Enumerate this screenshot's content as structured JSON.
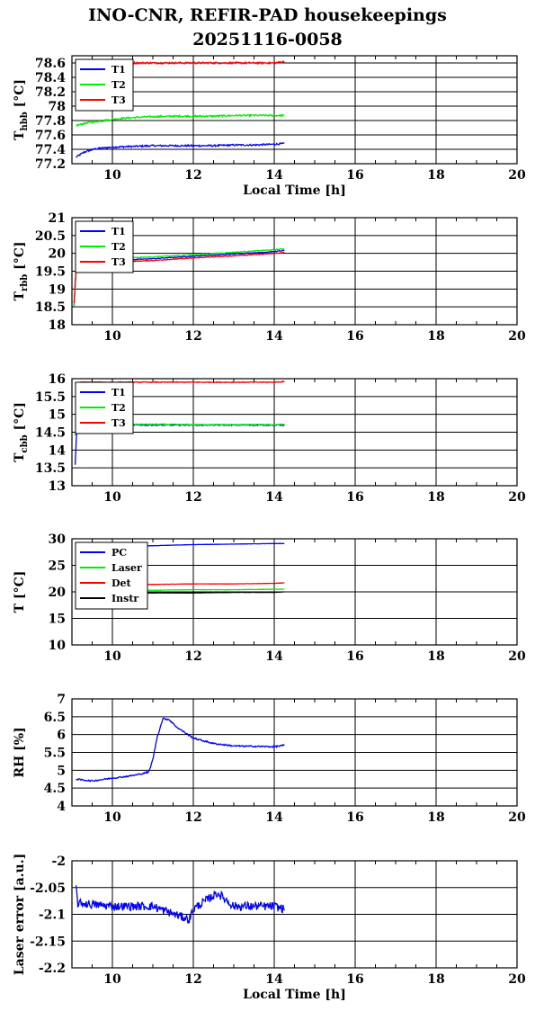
{
  "title_line1": "INO-CNR, REFIR-PAD housekeepings",
  "title_line2": "20251116-0058",
  "chart_data": [
    {
      "type": "line",
      "ylabel": "T",
      "ylabel_sub": "hbb",
      "ylabel_unit": "[°C]",
      "xlabel": "Local Time [h]",
      "xlim": [
        9,
        20
      ],
      "ylim": [
        77.2,
        78.7
      ],
      "yticks": [
        77.2,
        77.4,
        77.6,
        77.8,
        78,
        78.2,
        78.4,
        78.6
      ],
      "ytick_labels": [
        "77.2",
        "77.4",
        "77.6",
        "77.8",
        "78",
        "78.2",
        "78.4",
        "78.6"
      ],
      "xticks": [
        10,
        12,
        14,
        16,
        18,
        20
      ],
      "xtick_labels": [
        "10",
        "12",
        "14",
        "16",
        "18",
        "20"
      ],
      "grid": true,
      "legend": "top-left",
      "series": [
        {
          "name": "T1",
          "color": "#0000ff",
          "x": [
            9.1,
            9.3,
            9.6,
            10,
            10.5,
            11,
            11.5,
            12,
            12.5,
            13,
            13.5,
            14,
            14.25
          ],
          "y": [
            77.29,
            77.36,
            77.41,
            77.43,
            77.44,
            77.45,
            77.45,
            77.45,
            77.45,
            77.46,
            77.46,
            77.47,
            77.48
          ],
          "noise": 0.012
        },
        {
          "name": "T2",
          "color": "#00ee00",
          "x": [
            9.1,
            9.4,
            9.8,
            10.2,
            10.8,
            11.5,
            12,
            12.5,
            13,
            13.5,
            14,
            14.25
          ],
          "y": [
            77.73,
            77.77,
            77.8,
            77.83,
            77.85,
            77.86,
            77.86,
            77.86,
            77.87,
            77.87,
            77.87,
            77.87
          ],
          "noise": 0.012
        },
        {
          "name": "T3",
          "color": "#ff0000",
          "x": [
            9.1,
            9.6,
            10,
            11,
            12,
            13,
            14,
            14.25
          ],
          "y": [
            78.6,
            78.6,
            78.6,
            78.6,
            78.6,
            78.6,
            78.6,
            78.62
          ],
          "noise": 0.012
        }
      ]
    },
    {
      "type": "line",
      "ylabel": "T",
      "ylabel_sub": "rbb",
      "ylabel_unit": "[°C]",
      "xlabel": "",
      "xlim": [
        9,
        20
      ],
      "ylim": [
        18,
        21
      ],
      "yticks": [
        18,
        18.5,
        19,
        19.5,
        20,
        20.5,
        21
      ],
      "ytick_labels": [
        "18",
        "18.5",
        "19",
        "19.5",
        "20",
        "20.5",
        "21"
      ],
      "xticks": [
        10,
        12,
        14,
        16,
        18,
        20
      ],
      "xtick_labels": [
        "10",
        "12",
        "14",
        "16",
        "18",
        "20"
      ],
      "grid": true,
      "legend": "top-left",
      "series": [
        {
          "name": "T1",
          "color": "#0000ff",
          "x": [
            9.05,
            9.1,
            9.15,
            9.3,
            10,
            11,
            12,
            13,
            14,
            14.25
          ],
          "y": [
            18.5,
            19.5,
            19.75,
            19.8,
            19.8,
            19.85,
            19.92,
            19.98,
            20.05,
            20.08
          ],
          "noise": 0.01
        },
        {
          "name": "T2",
          "color": "#00ee00",
          "x": [
            9.05,
            9.1,
            9.15,
            9.3,
            10,
            11,
            12,
            13,
            14,
            14.25
          ],
          "y": [
            18.5,
            19.5,
            19.78,
            19.82,
            19.85,
            19.9,
            19.96,
            20.03,
            20.1,
            20.13
          ],
          "noise": 0.012
        },
        {
          "name": "T3",
          "color": "#ff0000",
          "x": [
            9.05,
            9.1,
            9.15,
            9.3,
            10,
            11,
            12,
            13,
            14,
            14.25
          ],
          "y": [
            18.6,
            19.5,
            19.7,
            19.72,
            19.75,
            19.8,
            19.87,
            19.93,
            20,
            20.02
          ],
          "noise": 0.01
        }
      ]
    },
    {
      "type": "line",
      "ylabel": "T",
      "ylabel_sub": "cbb",
      "ylabel_unit": "[°C]",
      "xlabel": "",
      "xlim": [
        9,
        20
      ],
      "ylim": [
        13,
        16
      ],
      "yticks": [
        13,
        13.5,
        14,
        14.5,
        15,
        15.5,
        16
      ],
      "ytick_labels": [
        "13",
        "13.5",
        "14",
        "14.5",
        "15",
        "15.5",
        "16"
      ],
      "xticks": [
        10,
        12,
        14,
        16,
        18,
        20
      ],
      "xtick_labels": [
        "10",
        "12",
        "14",
        "16",
        "18",
        "20"
      ],
      "grid": true,
      "legend": "top-left",
      "series": [
        {
          "name": "T1",
          "color": "#0000ff",
          "x": [
            9.08,
            9.12,
            9.2,
            9.5,
            10,
            11,
            12,
            13,
            14,
            14.25
          ],
          "y": [
            13.6,
            14.6,
            14.68,
            14.7,
            14.7,
            14.7,
            14.7,
            14.7,
            14.7,
            14.7
          ],
          "noise": 0.015
        },
        {
          "name": "T2",
          "color": "#00ee00",
          "x": [
            9.08,
            9.12,
            9.2,
            9.5,
            10,
            11,
            12,
            13,
            14,
            14.25
          ],
          "y": [
            14.4,
            14.65,
            14.7,
            14.72,
            14.72,
            14.72,
            14.71,
            14.71,
            14.71,
            14.72
          ],
          "noise": 0.015
        },
        {
          "name": "T3",
          "color": "#ff0000",
          "x": [
            9.08,
            9.1,
            9.2,
            10,
            11,
            12,
            13,
            14,
            14.25
          ],
          "y": [
            15.85,
            15.88,
            15.9,
            15.9,
            15.9,
            15.9,
            15.9,
            15.9,
            15.92
          ],
          "noise": 0.012
        }
      ]
    },
    {
      "type": "line",
      "ylabel": "T [°C]",
      "xlabel": "",
      "xlim": [
        9,
        20
      ],
      "ylim": [
        10,
        30
      ],
      "yticks": [
        10,
        15,
        20,
        25,
        30
      ],
      "ytick_labels": [
        "10",
        "15",
        "20",
        "25",
        "30"
      ],
      "xticks": [
        10,
        12,
        14,
        16,
        18,
        20
      ],
      "xtick_labels": [
        "10",
        "12",
        "14",
        "16",
        "18",
        "20"
      ],
      "grid": true,
      "legend": "top-left",
      "series": [
        {
          "name": "PC",
          "color": "#0000ff",
          "x": [
            9.1,
            10,
            11,
            12,
            13,
            14,
            14.25
          ],
          "y": [
            28.3,
            28.5,
            28.7,
            28.9,
            29.0,
            29.1,
            29.1
          ],
          "noise": 0.02
        },
        {
          "name": "Laser",
          "color": "#00ee00",
          "x": [
            9.1,
            10,
            11,
            12,
            13,
            14,
            14.25
          ],
          "y": [
            20.3,
            20.3,
            20.3,
            20.4,
            20.4,
            20.5,
            20.5
          ],
          "noise": 0.03
        },
        {
          "name": "Det",
          "color": "#ff0000",
          "x": [
            9.1,
            10,
            11,
            12,
            13,
            14,
            14.25
          ],
          "y": [
            21.4,
            21.4,
            21.4,
            21.5,
            21.5,
            21.6,
            21.7
          ],
          "noise": 0.02
        },
        {
          "name": "Instr",
          "color": "#000000",
          "x": [
            9.1,
            10,
            11,
            12,
            13,
            14,
            14.25
          ],
          "y": [
            19.7,
            19.7,
            19.8,
            19.8,
            19.9,
            19.9,
            20.0
          ],
          "noise": 0.02
        }
      ]
    },
    {
      "type": "line",
      "ylabel": "RH [%]",
      "xlabel": "",
      "xlim": [
        9,
        20
      ],
      "ylim": [
        4,
        7
      ],
      "yticks": [
        4,
        4.5,
        5,
        5.5,
        6,
        6.5,
        7
      ],
      "ytick_labels": [
        "4",
        "4.5",
        "5",
        "5.5",
        "6",
        "6.5",
        "7"
      ],
      "xticks": [
        10,
        12,
        14,
        16,
        18,
        20
      ],
      "xtick_labels": [
        "10",
        "12",
        "14",
        "16",
        "18",
        "20"
      ],
      "grid": true,
      "legend": "none",
      "series": [
        {
          "color": "#0000ff",
          "x": [
            9.1,
            9.5,
            10,
            10.3,
            10.6,
            10.9,
            11.0,
            11.1,
            11.25,
            11.4,
            11.6,
            12,
            12.5,
            13,
            13.5,
            14,
            14.25
          ],
          "y": [
            4.75,
            4.7,
            4.78,
            4.82,
            4.87,
            4.95,
            5.3,
            5.9,
            6.45,
            6.42,
            6.2,
            5.9,
            5.75,
            5.68,
            5.67,
            5.66,
            5.7
          ],
          "noise": 0.02
        }
      ]
    },
    {
      "type": "line",
      "ylabel": "Laser error [a.u.]",
      "xlabel": "Local Time [h]",
      "xlim": [
        9,
        20
      ],
      "ylim": [
        -2.2,
        -2
      ],
      "yticks": [
        -2.2,
        -2.15,
        -2.1,
        -2.05,
        -2
      ],
      "ytick_labels": [
        "-2.2",
        "-2.15",
        "-2.1",
        "-2.05",
        "-2"
      ],
      "xticks": [
        10,
        12,
        14,
        16,
        18,
        20
      ],
      "xtick_labels": [
        "10",
        "12",
        "14",
        "16",
        "18",
        "20"
      ],
      "grid": true,
      "legend": "none",
      "series": [
        {
          "color": "#0000ff",
          "x": [
            9.1,
            9.15,
            9.3,
            10,
            11,
            11.9,
            12,
            12.6,
            13,
            14,
            14.25
          ],
          "y": [
            -2.05,
            -2.08,
            -2.08,
            -2.085,
            -2.085,
            -2.11,
            -2.09,
            -2.06,
            -2.085,
            -2.085,
            -2.09
          ],
          "noise": 0.008
        }
      ]
    }
  ]
}
